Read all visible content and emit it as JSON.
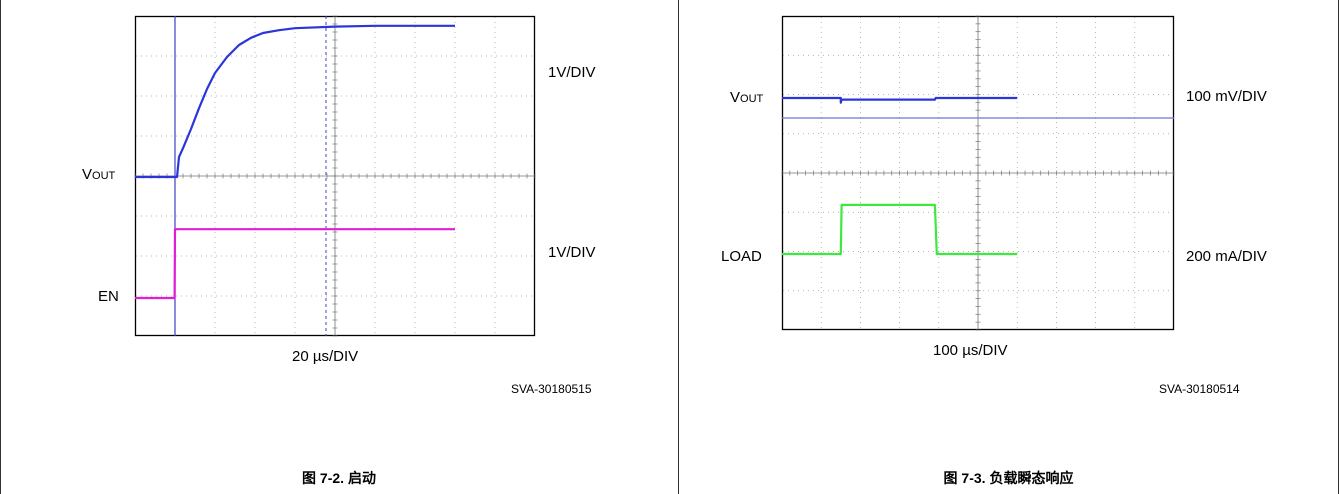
{
  "chart_data": [
    {
      "type": "line",
      "title": "",
      "caption": "图 7-2. 启动",
      "figure_code": "SVA-30180515",
      "x_scale_label": "20 µs/DIV",
      "grid": true,
      "series": [
        {
          "name": "VOUT",
          "label_main": "V",
          "label_sub": "OUT",
          "scale_label": "1V/DIV",
          "color": "#2b35d9",
          "x": [
            0.0,
            0.8,
            1.05,
            1.1,
            1.2,
            1.4,
            1.6,
            1.8,
            2.0,
            2.3,
            2.6,
            2.9,
            3.2,
            3.6,
            4.0,
            5.0,
            6.0,
            7.0,
            8.0
          ],
          "y": [
            0.0,
            0.0,
            0.0,
            0.5,
            0.72,
            1.2,
            1.72,
            2.2,
            2.6,
            3.0,
            3.3,
            3.48,
            3.6,
            3.67,
            3.72,
            3.76,
            3.78,
            3.78,
            3.78
          ]
        },
        {
          "name": "EN",
          "label_main": "EN",
          "label_sub": "",
          "scale_label": "1V/DIV",
          "color": "#e01fd2",
          "x": [
            0.0,
            0.99,
            1.0,
            8.0
          ],
          "y": [
            0.0,
            0.0,
            1.72,
            1.72
          ]
        }
      ]
    },
    {
      "type": "line",
      "title": "",
      "caption": "图 7-3. 负载瞬态响应",
      "figure_code": "SVA-30180514",
      "x_scale_label": "100 µs/DIV",
      "grid": true,
      "series": [
        {
          "name": "VOUT",
          "label_main": "V",
          "label_sub": "OUT",
          "scale_label": "100 mV/DIV",
          "color": "#2b35d9",
          "x": [
            0.0,
            1.5,
            1.5,
            1.52,
            3.9,
            3.92,
            6.0
          ],
          "y": [
            0.0,
            0.0,
            -0.12,
            -0.04,
            -0.04,
            0.0,
            0.0
          ]
        },
        {
          "name": "LOAD",
          "label_main": "LOAD",
          "label_sub": "",
          "scale_label": "200 mA/DIV",
          "color": "#3ee83e",
          "x": [
            0.0,
            1.5,
            1.52,
            3.9,
            3.95,
            6.0
          ],
          "y": [
            0.0,
            0.0,
            1.25,
            1.25,
            0.0,
            0.0
          ]
        }
      ]
    }
  ]
}
